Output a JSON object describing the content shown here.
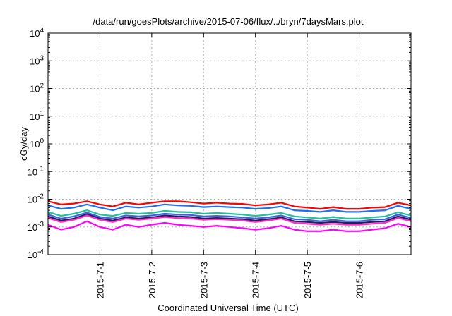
{
  "chart_data": {
    "type": "line",
    "title": "/data/run/goesPlots/archive/2015-07-06/flux/../bryn/7daysMars.plot",
    "xlabel": "Coordinated Universal Time (UTC)",
    "ylabel": "cGy/day",
    "yscale": "log",
    "ylim": [
      0.0001,
      10000
    ],
    "xlim": [
      "2015-06-30T00:00",
      "2015-07-07T00:00"
    ],
    "grid": true,
    "legend": "none",
    "x_ticks": [
      "2015-7-1",
      "2015-7-2",
      "2015-7-3",
      "2015-7-4",
      "2015-7-5",
      "2015-7-6"
    ],
    "y_ticks": [
      {
        "value": 0.0001,
        "base": "10",
        "exp": "-4"
      },
      {
        "value": 0.001,
        "base": "10",
        "exp": "-3"
      },
      {
        "value": 0.01,
        "base": "10",
        "exp": "-2"
      },
      {
        "value": 0.1,
        "base": "10",
        "exp": "-1"
      },
      {
        "value": 1,
        "base": "10",
        "exp": "0"
      },
      {
        "value": 10,
        "base": "10",
        "exp": "1"
      },
      {
        "value": 100,
        "base": "10",
        "exp": "2"
      },
      {
        "value": 1000,
        "base": "10",
        "exp": "3"
      },
      {
        "value": 10000,
        "base": "10",
        "exp": "4"
      }
    ],
    "x": [
      "2015-06-30T00:00",
      "2015-06-30T06:00",
      "2015-06-30T12:00",
      "2015-06-30T18:00",
      "2015-07-01T00:00",
      "2015-07-01T06:00",
      "2015-07-01T12:00",
      "2015-07-01T18:00",
      "2015-07-02T00:00",
      "2015-07-02T06:00",
      "2015-07-02T12:00",
      "2015-07-02T18:00",
      "2015-07-03T00:00",
      "2015-07-03T06:00",
      "2015-07-03T12:00",
      "2015-07-03T18:00",
      "2015-07-04T00:00",
      "2015-07-04T06:00",
      "2015-07-04T12:00",
      "2015-07-04T18:00",
      "2015-07-05T00:00",
      "2015-07-05T06:00",
      "2015-07-05T12:00",
      "2015-07-05T18:00",
      "2015-07-06T00:00",
      "2015-07-06T06:00",
      "2015-07-06T12:00",
      "2015-07-06T18:00",
      "2015-07-07T00:00"
    ],
    "series": [
      {
        "color": "#ff0000",
        "values": [
          0.0085,
          0.0065,
          0.007,
          0.0085,
          0.0065,
          0.0055,
          0.0075,
          0.0065,
          0.0075,
          0.0085,
          0.0085,
          0.0078,
          0.007,
          0.0075,
          0.007,
          0.0068,
          0.006,
          0.0065,
          0.0075,
          0.0055,
          0.005,
          0.0045,
          0.0052,
          0.0045,
          0.0045,
          0.005,
          0.0052,
          0.0075,
          0.006
        ]
      },
      {
        "color": "#1e6ef0",
        "values": [
          0.006,
          0.0045,
          0.005,
          0.0065,
          0.005,
          0.004,
          0.0055,
          0.005,
          0.0055,
          0.0065,
          0.006,
          0.0058,
          0.0052,
          0.0055,
          0.0052,
          0.005,
          0.0045,
          0.0048,
          0.0055,
          0.004,
          0.0038,
          0.0035,
          0.004,
          0.0035,
          0.0035,
          0.0038,
          0.004,
          0.0058,
          0.0045
        ]
      },
      {
        "color": "#20c0a0",
        "values": [
          0.0035,
          0.0025,
          0.003,
          0.004,
          0.0028,
          0.0025,
          0.0032,
          0.003,
          0.0032,
          0.0038,
          0.0035,
          0.0034,
          0.003,
          0.0032,
          0.003,
          0.0028,
          0.0025,
          0.0028,
          0.0032,
          0.0024,
          0.0022,
          0.002,
          0.0023,
          0.002,
          0.002,
          0.0022,
          0.0024,
          0.0034,
          0.0026
        ]
      },
      {
        "color": "#4060e0",
        "values": [
          0.0028,
          0.002,
          0.0024,
          0.0033,
          0.0023,
          0.002,
          0.0026,
          0.0024,
          0.0026,
          0.003,
          0.0028,
          0.0027,
          0.0024,
          0.0025,
          0.0024,
          0.0022,
          0.002,
          0.0022,
          0.0026,
          0.0019,
          0.0018,
          0.0016,
          0.0018,
          0.0016,
          0.0016,
          0.0018,
          0.0019,
          0.0028,
          0.0021
        ]
      },
      {
        "color": "#202060",
        "values": [
          0.0024,
          0.0017,
          0.002,
          0.0029,
          0.002,
          0.0017,
          0.0022,
          0.002,
          0.0022,
          0.0026,
          0.0024,
          0.0023,
          0.002,
          0.0021,
          0.002,
          0.0019,
          0.0017,
          0.0019,
          0.0022,
          0.0016,
          0.0015,
          0.0014,
          0.0015,
          0.0014,
          0.0014,
          0.0015,
          0.0016,
          0.0024,
          0.0018
        ]
      },
      {
        "color": "#ff30c0",
        "values": [
          0.0021,
          0.0015,
          0.0018,
          0.0026,
          0.0018,
          0.0015,
          0.002,
          0.0018,
          0.002,
          0.0023,
          0.0021,
          0.002,
          0.0018,
          0.0019,
          0.0018,
          0.0017,
          0.0015,
          0.0017,
          0.002,
          0.0014,
          0.0013,
          0.0012,
          0.0013,
          0.0012,
          0.0012,
          0.0013,
          0.0014,
          0.0021,
          0.0016
        ]
      },
      {
        "color": "#ff00ff",
        "values": [
          0.0012,
          0.0008,
          0.001,
          0.0016,
          0.001,
          0.0008,
          0.0012,
          0.001,
          0.0012,
          0.0014,
          0.0012,
          0.0011,
          0.001,
          0.0011,
          0.001,
          0.0009,
          0.0008,
          0.0009,
          0.0011,
          0.0008,
          0.0007,
          0.0007,
          0.0008,
          0.0007,
          0.0007,
          0.0008,
          0.0009,
          0.0013,
          0.001
        ]
      }
    ]
  }
}
